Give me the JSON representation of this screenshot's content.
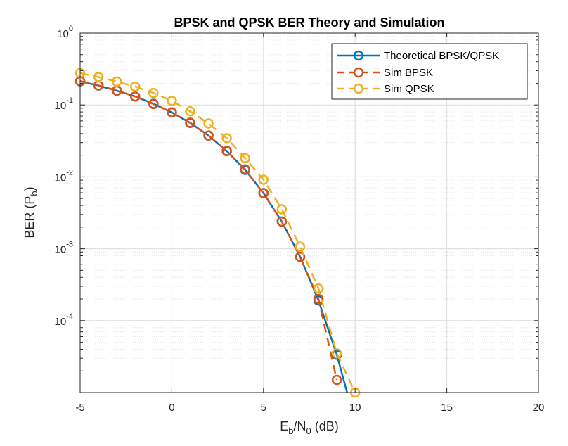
{
  "chart_data": {
    "type": "line",
    "title": "BPSK and QPSK BER Theory and Simulation",
    "xlabel": {
      "base": "E",
      "sub1": "b",
      "mid": "/N",
      "sub2": "0",
      "tail": " (dB)"
    },
    "ylabel": {
      "base": "BER (P",
      "sub": "b",
      "tail": ")"
    },
    "xlim": [
      -5,
      20
    ],
    "ylim": [
      1e-05,
      1
    ],
    "yscale": "log",
    "grid": true,
    "minor_grid": true,
    "legend_position": "top-right",
    "x_ticks": [
      "-5",
      "0",
      "5",
      "10",
      "15",
      "20"
    ],
    "y_ticks": [
      {
        "base": "10",
        "exp": "-4"
      },
      {
        "base": "10",
        "exp": "-3"
      },
      {
        "base": "10",
        "exp": "-2"
      },
      {
        "base": "10",
        "exp": "-1"
      },
      {
        "base": "10",
        "exp": "0"
      }
    ],
    "series": [
      {
        "name": "Theoretical BPSK/QPSK",
        "color": "#0072BD",
        "line_style": "solid",
        "marker": "circle",
        "x": [
          -5,
          -4,
          -3,
          -2,
          -1,
          0,
          1,
          2,
          3,
          4,
          5,
          6,
          7,
          8,
          9,
          10
        ],
        "y": [
          0.213,
          0.186,
          0.158,
          0.131,
          0.104,
          0.0786,
          0.0563,
          0.0375,
          0.0229,
          0.0125,
          0.00595,
          0.00239,
          0.000773,
          0.000191,
          3.36e-05,
          3.87e-06
        ]
      },
      {
        "name": "Sim BPSK",
        "color": "#D95319",
        "line_style": "dashed",
        "marker": "circle",
        "x": [
          -5,
          -4,
          -3,
          -2,
          -1,
          0,
          1,
          2,
          3,
          4,
          5,
          6,
          7,
          8,
          9
        ],
        "y": [
          0.215,
          0.187,
          0.159,
          0.131,
          0.103,
          0.0789,
          0.0567,
          0.0376,
          0.0228,
          0.0127,
          0.00593,
          0.00238,
          0.00077,
          0.0002,
          1.5e-05
        ]
      },
      {
        "name": "Sim QPSK",
        "color": "#EDB120",
        "line_style": "dashed",
        "marker": "circle",
        "x": [
          -5,
          -4,
          -3,
          -2,
          -1,
          0,
          1,
          2,
          3,
          4,
          5,
          6,
          7,
          8,
          9,
          10
        ],
        "y": [
          0.278,
          0.245,
          0.212,
          0.18,
          0.147,
          0.114,
          0.0815,
          0.0553,
          0.0345,
          0.0182,
          0.00912,
          0.00355,
          0.00107,
          0.00028,
          3.5e-05,
          1e-05
        ]
      }
    ]
  }
}
